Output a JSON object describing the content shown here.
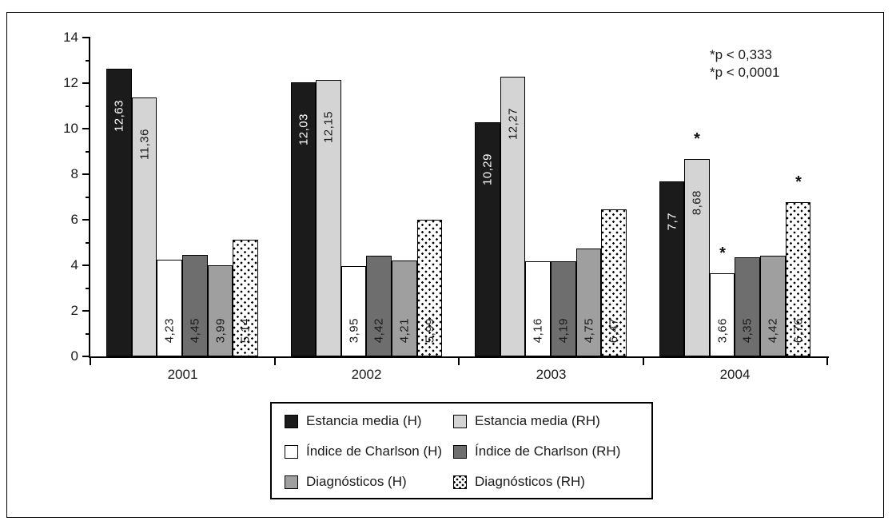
{
  "figure": {
    "background": "#ffffff",
    "frame_color": "#000000",
    "axis_color": "#000000"
  },
  "chart_data": {
    "type": "bar",
    "title": "",
    "xlabel": "",
    "ylabel": "",
    "grid": false,
    "legend_position": "bottom",
    "ylim": [
      0,
      14
    ],
    "yticks": [
      0,
      2,
      4,
      6,
      8,
      10,
      12,
      14
    ],
    "minor_yticks": [
      1,
      3,
      5,
      7,
      9,
      11,
      13
    ],
    "categories": [
      "2001",
      "2002",
      "2003",
      "2004"
    ],
    "series": [
      {
        "name": "Estancia media (H)",
        "color": "#1b1b1b",
        "pattern": "solid",
        "label_color": "#ffffff",
        "values": [
          12.63,
          12.03,
          10.29,
          7.7
        ],
        "value_labels": [
          "12,63",
          "12,03",
          "10,29",
          "7,7"
        ]
      },
      {
        "name": "Estancia media (RH)",
        "color": "#d4d4d4",
        "pattern": "solid",
        "label_color": "#1a1a1a",
        "values": [
          11.36,
          12.15,
          12.27,
          8.68
        ],
        "value_labels": [
          "11,36",
          "12,15",
          "12,27",
          "8,68"
        ]
      },
      {
        "name": "Índice de Charlson (H)",
        "color": "#ffffff",
        "pattern": "solid",
        "label_color": "#1a1a1a",
        "values": [
          4.23,
          3.95,
          4.16,
          3.66
        ],
        "value_labels": [
          "4,23",
          "3,95",
          "4,16",
          "3,66"
        ]
      },
      {
        "name": "Índice de Charlson (RH)",
        "color": "#6e6e6e",
        "pattern": "solid",
        "label_color": "#1a1a1a",
        "values": [
          4.45,
          4.42,
          4.19,
          4.35
        ],
        "value_labels": [
          "4,45",
          "4,42",
          "4,19",
          "4,35"
        ]
      },
      {
        "name": "Diagnósticos (H)",
        "color": "#9f9f9f",
        "pattern": "solid",
        "label_color": "#1a1a1a",
        "values": [
          3.99,
          4.21,
          4.75,
          4.42
        ],
        "value_labels": [
          "3,99",
          "4,21",
          "4,75",
          "4,42"
        ]
      },
      {
        "name": "Diagnósticos (RH)",
        "color": "dots",
        "pattern": "dotted",
        "label_color": "#1a1a1a",
        "values": [
          5.14,
          5.99,
          6.47,
          6.76
        ],
        "value_labels": [
          "5,14",
          "5,99",
          "6,47",
          "6,76"
        ]
      }
    ],
    "significance_stars": [
      {
        "category": "2004",
        "series": "Estancia media (RH)"
      },
      {
        "category": "2004",
        "series": "Índice de Charlson (H)"
      },
      {
        "category": "2004",
        "series": "Diagnósticos (RH)"
      }
    ],
    "annotations": [
      "*p < 0,333",
      "*p < 0,0001"
    ]
  }
}
